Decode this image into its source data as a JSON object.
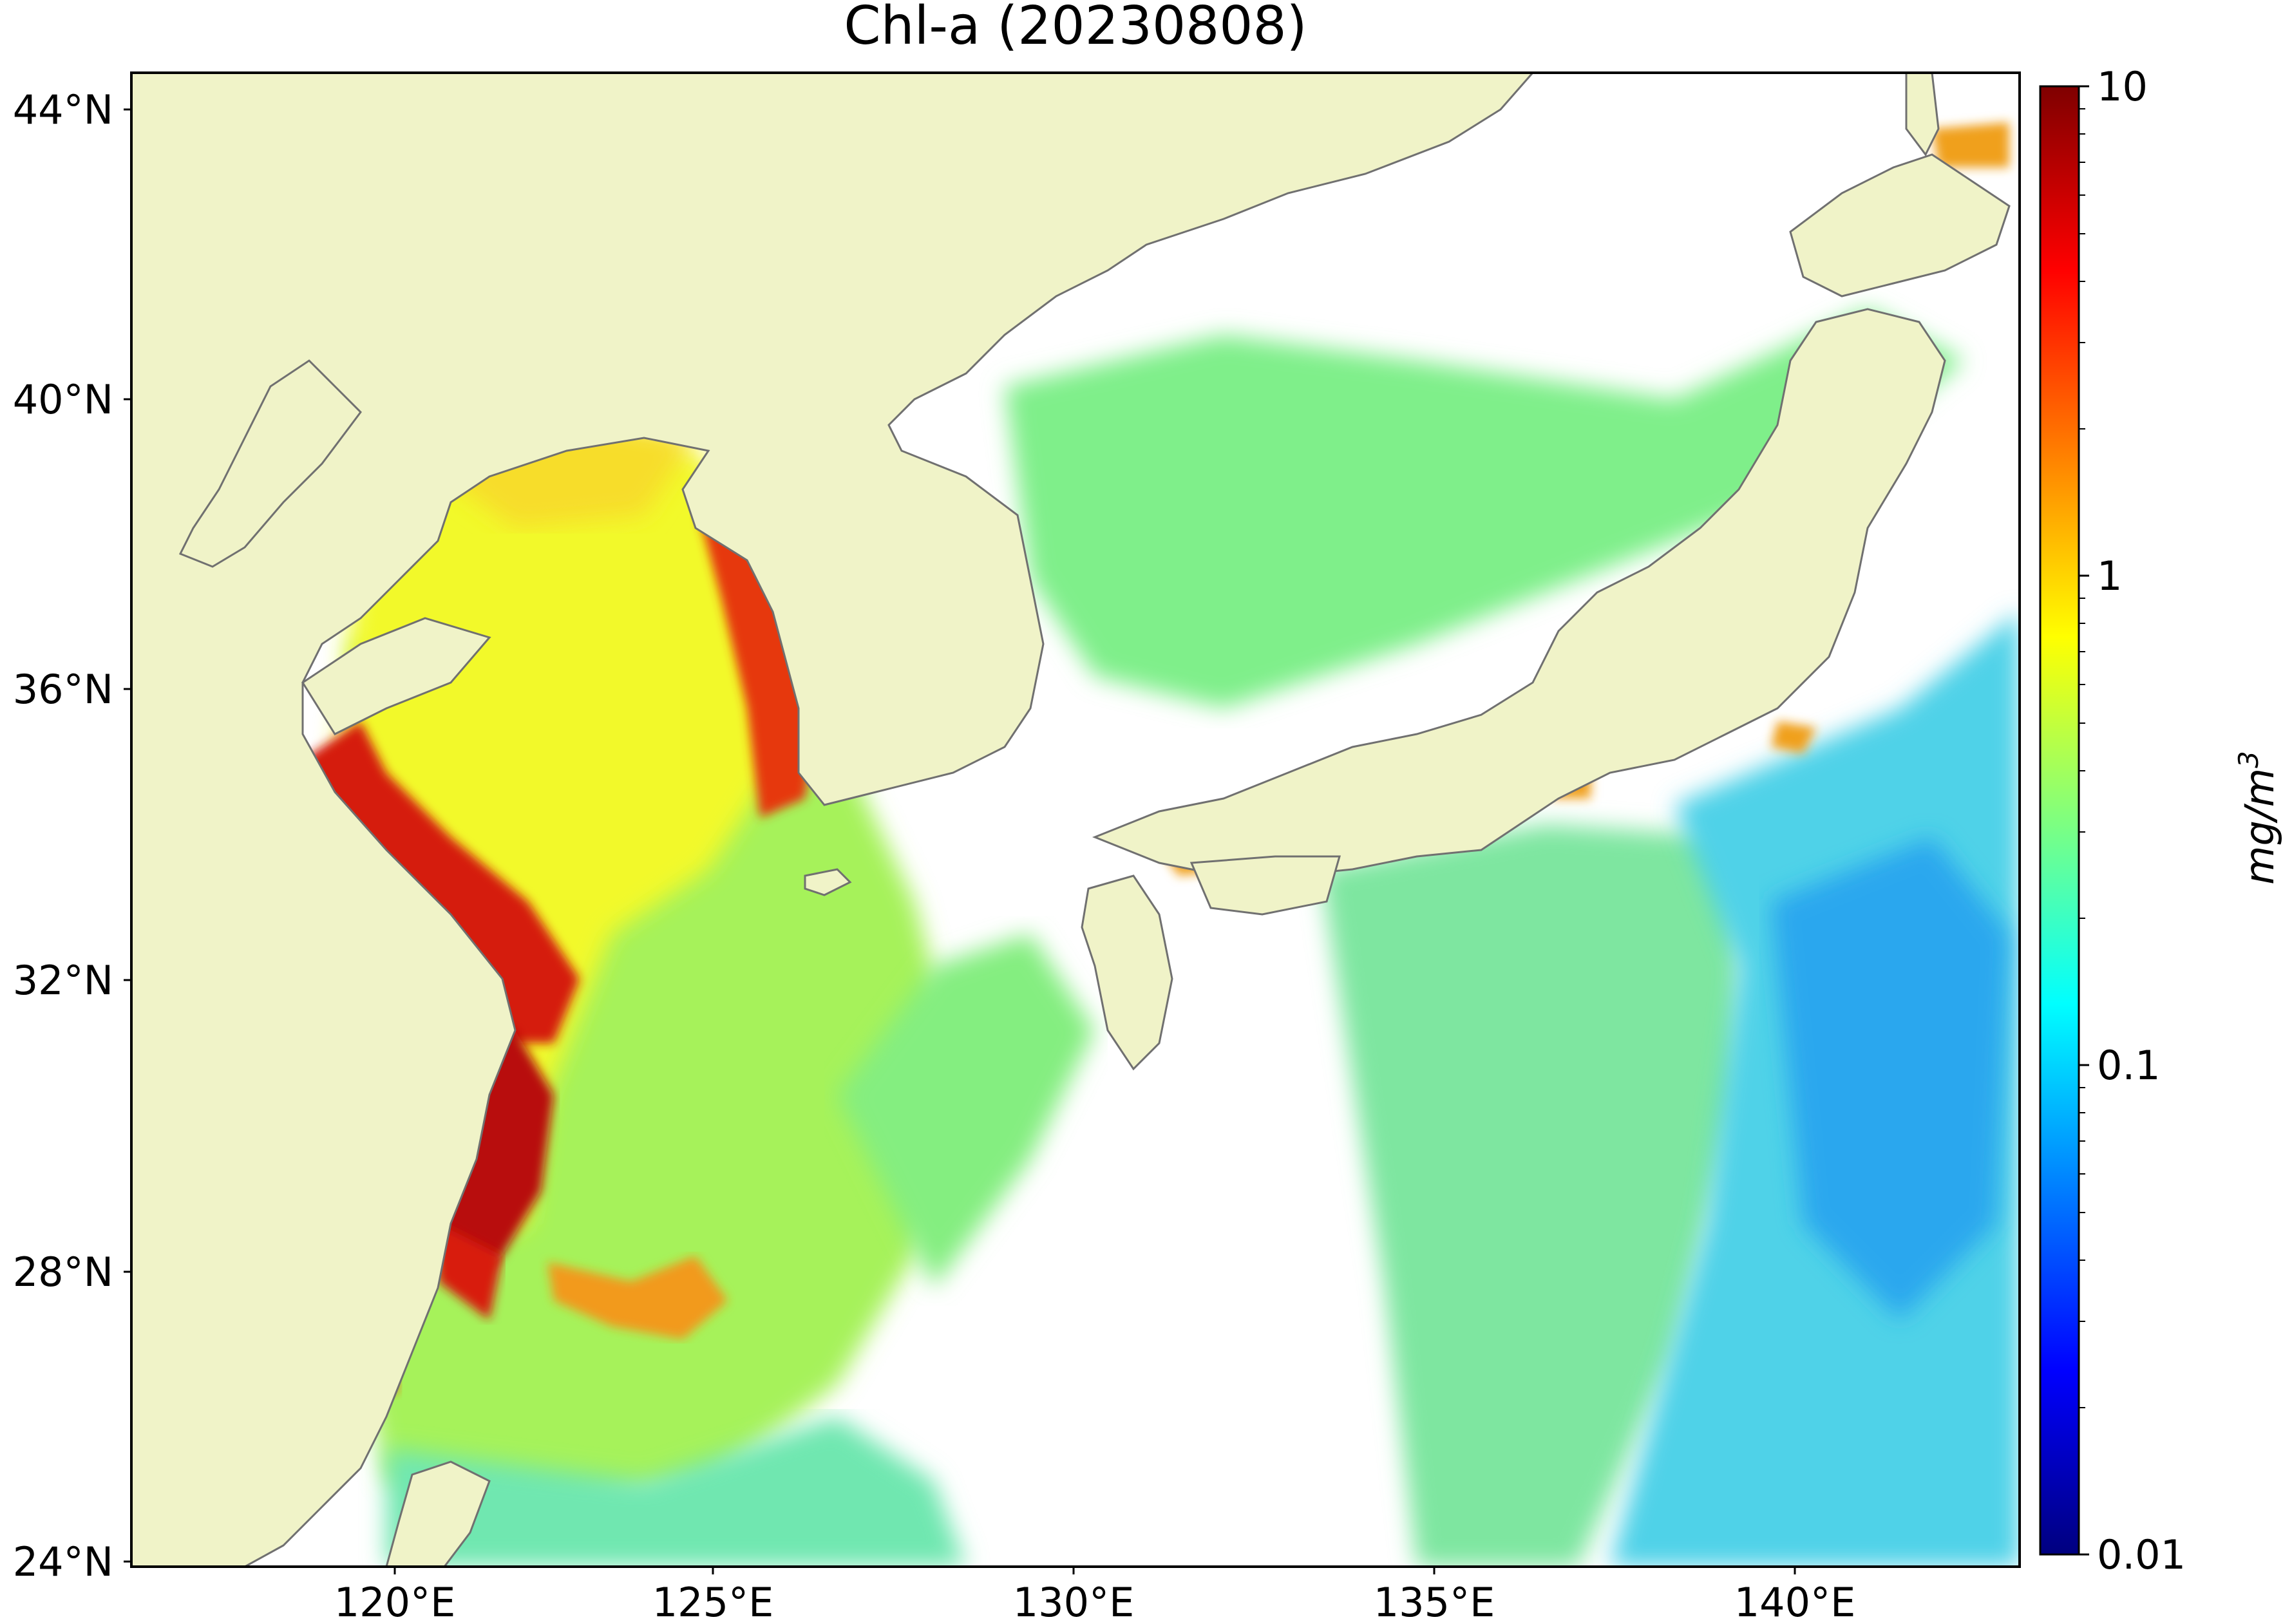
{
  "title": "Chl-a (20230808)",
  "lat_ticks": [
    {
      "label": "44°N",
      "value": 44
    },
    {
      "label": "40°N",
      "value": 40
    },
    {
      "label": "36°N",
      "value": 36
    },
    {
      "label": "32°N",
      "value": 32
    },
    {
      "label": "28°N",
      "value": 28
    },
    {
      "label": "24°N",
      "value": 24
    }
  ],
  "lon_ticks": [
    {
      "label": "120°E",
      "value": 120
    },
    {
      "label": "125°E",
      "value": 125
    },
    {
      "label": "130°E",
      "value": 130
    },
    {
      "label": "135°E",
      "value": 135
    },
    {
      "label": "140°E",
      "value": 140
    }
  ],
  "extent": {
    "lon_min": 117,
    "lon_max": 143.5,
    "lat_min": 24,
    "lat_max": 44.5
  },
  "colorbar": {
    "label": "mg/m",
    "label_superscript": "3",
    "scale": "log",
    "min": 0.01,
    "max": 10,
    "ticks": [
      {
        "label": "10",
        "value": 10
      },
      {
        "label": "1",
        "value": 1
      },
      {
        "label": "0.1",
        "value": 0.1
      },
      {
        "label": "0.01",
        "value": 0.01
      }
    ],
    "colormap": [
      "#00007f",
      "#0000ff",
      "#007fff",
      "#00ffff",
      "#7fff7f",
      "#ffff00",
      "#ff7f00",
      "#ff0000",
      "#7f0000"
    ]
  },
  "colors": {
    "land": "#f0f3c8",
    "coast": "#707070",
    "no_data": "#ffffff"
  }
}
